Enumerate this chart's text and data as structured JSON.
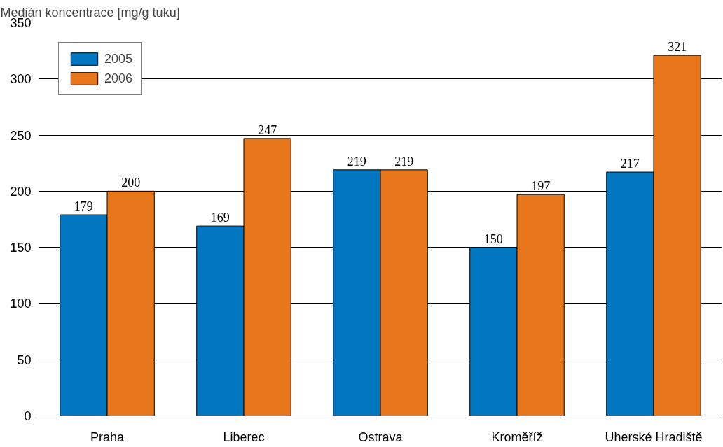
{
  "chart_data": {
    "type": "bar",
    "ylabel": "Medián koncentrace [mg/g tuku]",
    "categories": [
      "Praha",
      "Liberec",
      "Ostrava",
      "Kroměříž",
      "Uherské Hradiště"
    ],
    "series": [
      {
        "name": "2005",
        "color": "#0077c0",
        "values": [
          179,
          169,
          219,
          150,
          217
        ]
      },
      {
        "name": "2006",
        "color": "#e8761a",
        "values": [
          200,
          247,
          219,
          197,
          321
        ]
      }
    ],
    "ylim": [
      0,
      350
    ],
    "yticks": [
      0,
      50,
      100,
      150,
      200,
      250,
      300,
      350
    ],
    "grid": "y",
    "legend": "top left",
    "data_labels": true
  }
}
